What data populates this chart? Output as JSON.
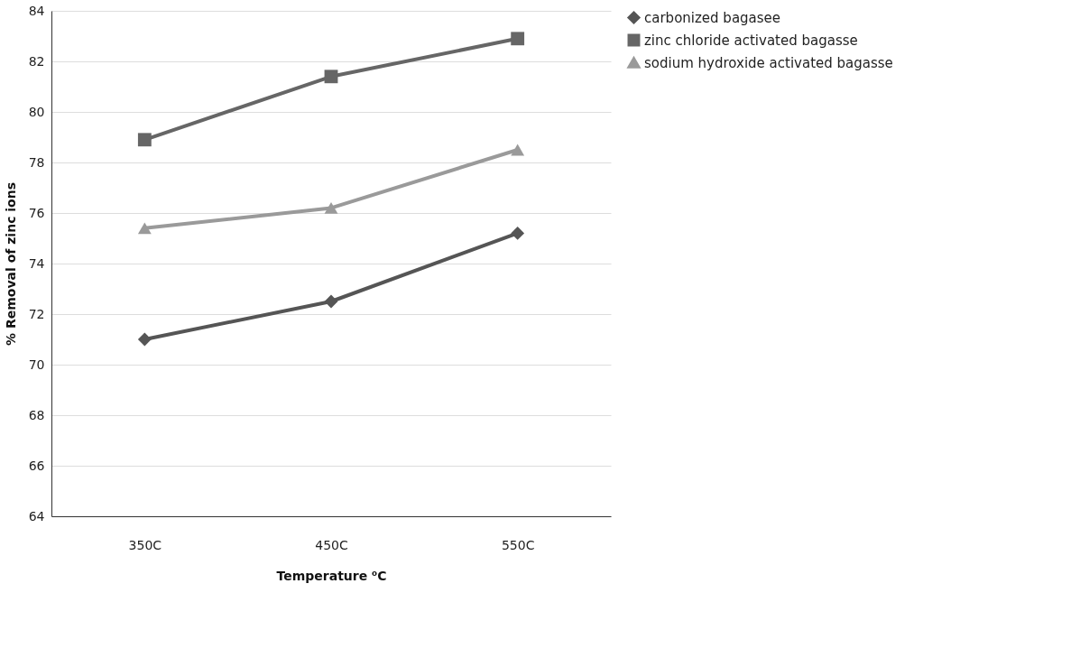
{
  "chart_data": {
    "type": "line",
    "xlabel": "Temperature ⁰C",
    "ylabel": "% Removal of zinc ions",
    "categories": [
      "350C",
      "450C",
      "550C"
    ],
    "series": [
      {
        "name": "carbonized bagasee",
        "color": "#555555",
        "marker": "diamond",
        "values": [
          71.0,
          72.5,
          75.2
        ]
      },
      {
        "name": "zinc chloride activated bagasse",
        "color": "#666666",
        "marker": "square",
        "values": [
          78.9,
          81.4,
          82.9
        ]
      },
      {
        "name": "sodium hydroxide activated bagasse",
        "color": "#9a9a9a",
        "marker": "triangle",
        "values": [
          75.4,
          76.2,
          78.5
        ]
      }
    ],
    "ylim": [
      64,
      84
    ],
    "yticks": [
      64,
      66,
      68,
      70,
      72,
      74,
      76,
      78,
      80,
      82,
      84
    ],
    "grid": "y",
    "legend": "right"
  }
}
